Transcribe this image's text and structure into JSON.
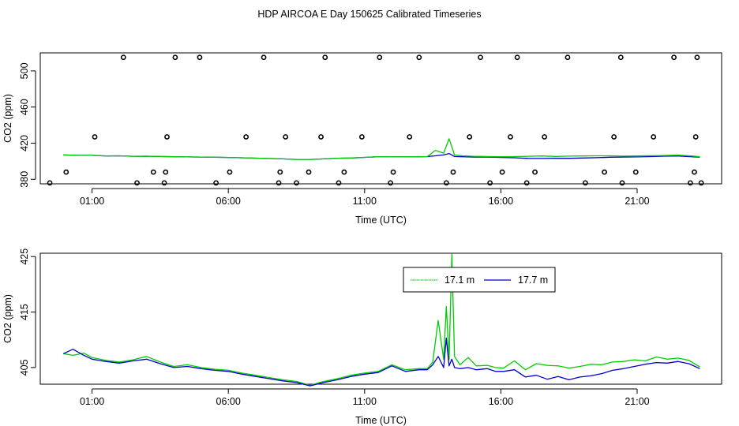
{
  "title": "HDP AIRCOA E  Day 150625  Calibrated Timeseries",
  "chart_data": [
    {
      "type": "scatter",
      "xlabel": "Time (UTC)",
      "ylabel": "CO2 (ppm)",
      "xlim": [
        -0.9,
        24.1
      ],
      "ylim": [
        375,
        520
      ],
      "xticks": [
        1,
        6,
        11,
        16,
        21
      ],
      "xtick_labels": [
        "01:00",
        "06:00",
        "11:00",
        "16:00",
        "21:00"
      ],
      "yticks": [
        380,
        420,
        460,
        500
      ],
      "yticks_rot": [
        "380",
        "420",
        "460",
        "500"
      ],
      "ytick_labels": [
        "380",
        "420",
        "460",
        "500"
      ],
      "grid": false,
      "series": [
        {
          "color": "#0000cc",
          "x": [
            -0.05,
            0.5,
            1.0,
            1.5,
            2.0,
            2.5,
            3.0,
            3.5,
            4.0,
            4.5,
            5.0,
            5.5,
            6.0,
            6.5,
            7.0,
            7.5,
            8.0,
            8.5,
            9.0,
            9.5,
            10.0,
            10.5,
            11.0,
            11.5,
            12.0,
            12.5,
            13.0,
            13.3,
            13.6,
            13.9,
            14.1,
            14.3,
            14.6,
            15.0,
            15.5,
            16.0,
            16.5,
            17.0,
            17.5,
            18.0,
            18.5,
            19.0,
            19.5,
            20.0,
            20.5,
            21.0,
            21.5,
            22.0,
            22.5,
            23.0,
            23.3
          ],
          "y": [
            407,
            406.5,
            406.5,
            405.8,
            406,
            405.5,
            405.6,
            405.2,
            405,
            404.8,
            404.6,
            404.4,
            404.2,
            403.8,
            403.4,
            403,
            402.6,
            402,
            402,
            402.6,
            403.3,
            403.6,
            404.3,
            405,
            404.8,
            404.9,
            405,
            405.1,
            406,
            407,
            408.5,
            405.2,
            405,
            404.6,
            404.6,
            404.2,
            403.8,
            403.1,
            403,
            403.3,
            403.2,
            403.6,
            403.9,
            404.4,
            404.6,
            404.8,
            405.1,
            405.6,
            405.8,
            405,
            404.5
          ]
        },
        {
          "color": "#00cc00",
          "x": [
            -0.05,
            0.5,
            1.0,
            1.5,
            2.0,
            2.5,
            3.0,
            3.5,
            4.0,
            4.5,
            5.0,
            5.5,
            6.0,
            6.5,
            7.0,
            7.5,
            8.0,
            8.5,
            9.0,
            9.5,
            10.0,
            10.5,
            11.0,
            11.5,
            12.0,
            12.5,
            13.0,
            13.3,
            13.6,
            13.9,
            14.1,
            14.3,
            14.6,
            15.0,
            15.5,
            16.0,
            16.5,
            17.0,
            17.5,
            18.0,
            18.5,
            19.0,
            19.5,
            20.0,
            20.5,
            21.0,
            21.5,
            22.0,
            22.5,
            23.0,
            23.3
          ],
          "y": [
            407,
            406.5,
            406.5,
            405.8,
            406,
            405.5,
            405.6,
            405.2,
            405,
            404.8,
            404.6,
            404.4,
            404.2,
            403.8,
            403.4,
            403,
            402.6,
            402,
            402,
            402.6,
            403.3,
            403.6,
            404.3,
            405,
            404.8,
            404.9,
            405,
            405.1,
            412,
            409,
            425,
            407,
            406,
            405.5,
            405.2,
            405,
            405.1,
            405.5,
            405.8,
            405.3,
            405.7,
            405.8,
            406,
            406,
            405.7,
            405.8,
            406.1,
            406.4,
            406.8,
            405.8,
            405
          ]
        }
      ],
      "points": {
        "x": [
          -0.55,
          0.05,
          1.1,
          2.15,
          2.65,
          3.25,
          3.65,
          3.7,
          3.75,
          4.05,
          4.95,
          5.55,
          6.05,
          6.65,
          7.3,
          7.85,
          7.9,
          8.1,
          8.5,
          8.95,
          9.4,
          9.55,
          10.05,
          10.25,
          10.9,
          11.55,
          11.95,
          12.05,
          12.65,
          13.0,
          14.0,
          14.25,
          14.85,
          15.25,
          15.6,
          16.05,
          16.35,
          16.6,
          16.95,
          17.25,
          17.6,
          18.45,
          19.1,
          19.8,
          20.15,
          20.4,
          20.45,
          20.95,
          21.6,
          22.35,
          22.95,
          23.1,
          23.15,
          23.2,
          23.35
        ],
        "y": [
          376,
          388,
          427,
          515,
          376,
          388,
          376,
          388,
          427,
          515,
          515,
          376,
          388,
          427,
          515,
          376,
          388,
          427,
          376,
          388,
          427,
          515,
          376,
          388,
          427,
          515,
          376,
          388,
          427,
          515,
          376,
          388,
          427,
          515,
          376,
          388,
          427,
          515,
          376,
          388,
          427,
          515,
          376,
          388,
          427,
          515,
          376,
          388,
          427,
          515,
          376,
          388,
          427,
          515,
          376
        ]
      }
    },
    {
      "type": "line",
      "xlabel": "Time (UTC)",
      "ylabel": "CO2 (ppm)",
      "xlim": [
        -0.9,
        24.1
      ],
      "ylim": [
        402,
        425.6
      ],
      "xticks": [
        1,
        6,
        11,
        16,
        21
      ],
      "xtick_labels": [
        "01:00",
        "06:00",
        "11:00",
        "16:00",
        "21:00"
      ],
      "yticks": [
        405,
        415,
        425
      ],
      "ytick_labels": [
        "405",
        "415",
        "425"
      ],
      "grid": false,
      "legend_position": "top-center",
      "series": [
        {
          "name": "17.1 m",
          "color": "#00cc00",
          "x": [
            -0.05,
            0.3,
            0.7,
            1.0,
            1.5,
            2.0,
            2.5,
            3.0,
            3.5,
            4.0,
            4.5,
            5.0,
            5.5,
            6.0,
            6.5,
            7.0,
            7.5,
            8.0,
            8.5,
            9.0,
            9.5,
            10.0,
            10.5,
            11.0,
            11.5,
            12.0,
            12.5,
            13.0,
            13.3,
            13.5,
            13.7,
            13.9,
            14.0,
            14.1,
            14.2,
            14.3,
            14.5,
            14.8,
            15.1,
            15.5,
            15.8,
            16.1,
            16.5,
            16.9,
            17.3,
            17.7,
            18.1,
            18.5,
            18.9,
            19.3,
            19.7,
            20.1,
            20.5,
            20.9,
            21.3,
            21.7,
            22.1,
            22.5,
            22.9,
            23.3
          ],
          "y": [
            407.5,
            407.2,
            407.6,
            406.8,
            406.3,
            406,
            406.4,
            407,
            406,
            405.2,
            405.5,
            405,
            404.7,
            404.5,
            404,
            403.6,
            403.2,
            402.8,
            402.5,
            401.8,
            402.5,
            403,
            403.6,
            404,
            404.3,
            405.5,
            404.6,
            404.8,
            404.8,
            406,
            413.5,
            406.5,
            416,
            406.4,
            425.4,
            407,
            405.5,
            406.8,
            405.3,
            405.4,
            405,
            404.9,
            406.2,
            404.6,
            405.7,
            405.4,
            405.3,
            404.9,
            405.2,
            405.6,
            405.5,
            406,
            406.1,
            406.4,
            406.2,
            406.9,
            406.5,
            406.7,
            406.3,
            405.1
          ]
        },
        {
          "name": "17.7 m",
          "color": "#0000cc",
          "x": [
            -0.05,
            0.3,
            0.7,
            1.0,
            1.5,
            2.0,
            2.5,
            3.0,
            3.5,
            4.0,
            4.5,
            5.0,
            5.5,
            6.0,
            6.5,
            7.0,
            7.5,
            8.0,
            8.5,
            9.0,
            9.5,
            10.0,
            10.5,
            11.0,
            11.5,
            12.0,
            12.5,
            13.0,
            13.3,
            13.5,
            13.7,
            13.9,
            14.0,
            14.1,
            14.2,
            14.3,
            14.5,
            14.8,
            15.1,
            15.5,
            15.8,
            16.1,
            16.5,
            16.9,
            17.3,
            17.7,
            18.1,
            18.5,
            18.9,
            19.3,
            19.7,
            20.1,
            20.5,
            20.9,
            21.3,
            21.7,
            22.1,
            22.5,
            22.9,
            23.3
          ],
          "y": [
            407.5,
            408.3,
            407.2,
            406.5,
            406.1,
            405.8,
            406.2,
            406.5,
            405.7,
            405,
            405.2,
            404.8,
            404.5,
            404.3,
            403.8,
            403.4,
            403,
            402.6,
            402.3,
            401.7,
            402.3,
            402.8,
            403.4,
            403.8,
            404.1,
            405.3,
            404.3,
            404.6,
            404.6,
            405.5,
            407,
            405,
            410.3,
            405.3,
            406.5,
            405,
            404.8,
            405,
            404.6,
            404.8,
            404.3,
            404.3,
            404.6,
            403.3,
            403.6,
            402.9,
            403.4,
            402.8,
            403.3,
            403.5,
            403.9,
            404.5,
            404.8,
            405.2,
            405.6,
            405.9,
            405.8,
            406.1,
            405.7,
            404.8
          ]
        }
      ]
    }
  ]
}
